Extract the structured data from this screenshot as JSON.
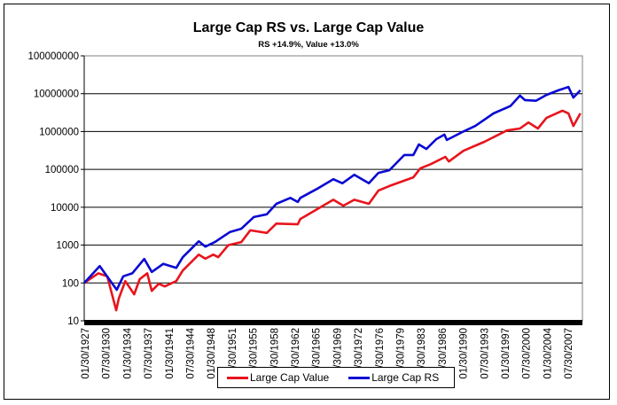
{
  "chart_data": {
    "type": "line",
    "title": "Large Cap RS vs. Large Cap Value",
    "subtitle": "RS +14.9%, Value +13.0%",
    "xlabel": "",
    "ylabel": "",
    "yscale": "log",
    "ylim": [
      10,
      100000000
    ],
    "yticks": [
      "100000000",
      "10000000",
      "1000000",
      "100000",
      "10000",
      "1000",
      "100",
      "10"
    ],
    "xlim": [
      "1927-01",
      "2010-01"
    ],
    "xticks": [
      "01/30/1927",
      "07/30/1930",
      "01/30/1934",
      "07/30/1937",
      "01/30/1941",
      "07/30/1944",
      "01/30/1948",
      "07/30/1951",
      "01/30/1955",
      "07/30/1958",
      "01/30/1962",
      "07/30/1965",
      "01/30/1969",
      "07/30/1972",
      "01/30/1976",
      "07/30/1979",
      "01/30/1983",
      "07/30/1986",
      "01/30/1990",
      "07/30/1993",
      "01/30/1997",
      "07/30/2000",
      "01/30/2004",
      "07/30/2007"
    ],
    "grid": "horizontal",
    "legend": "bottom",
    "series": [
      {
        "name": "Large Cap Value",
        "color": "#e8141c",
        "points": [
          [
            "1927-01",
            100
          ],
          [
            "1929-05",
            180
          ],
          [
            "1930-11",
            150
          ],
          [
            "1932-05",
            19
          ],
          [
            "1932-10",
            38
          ],
          [
            "1933-11",
            112
          ],
          [
            "1935-05",
            50
          ],
          [
            "1936-04",
            126
          ],
          [
            "1937-07",
            180
          ],
          [
            "1938-04",
            62
          ],
          [
            "1939-06",
            95
          ],
          [
            "1940-06",
            81
          ],
          [
            "1942-05",
            112
          ],
          [
            "1943-06",
            214
          ],
          [
            "1946-02",
            560
          ],
          [
            "1947-03",
            437
          ],
          [
            "1948-07",
            560
          ],
          [
            "1949-05",
            480
          ],
          [
            "1951-01",
            1000
          ],
          [
            "1953-03",
            1200
          ],
          [
            "1954-09",
            2450
          ],
          [
            "1957-06",
            2100
          ],
          [
            "1959-01",
            3700
          ],
          [
            "1962-08",
            3550
          ],
          [
            "1963-01",
            4900
          ],
          [
            "1966-01",
            9300
          ],
          [
            "1968-07",
            15800
          ],
          [
            "1970-03",
            11000
          ],
          [
            "1972-01",
            15800
          ],
          [
            "1974-06",
            12300
          ],
          [
            "1976-01",
            27500
          ],
          [
            "1977-11",
            36300
          ],
          [
            "1981-11",
            61700
          ],
          [
            "1983-01",
            107000
          ],
          [
            "1984-10",
            138000
          ],
          [
            "1987-03",
            214000
          ],
          [
            "1987-10",
            162000
          ],
          [
            "1990-03",
            309000
          ],
          [
            "1993-09",
            537000
          ],
          [
            "1997-06",
            1070000
          ],
          [
            "1999-08",
            1200000
          ],
          [
            "2001-01",
            1740000
          ],
          [
            "2002-08",
            1200000
          ],
          [
            "2004-01",
            2290000
          ],
          [
            "2006-09",
            3550000
          ],
          [
            "2007-09",
            3020000
          ],
          [
            "2008-07",
            1410000
          ],
          [
            "2009-09",
            3020000
          ]
        ]
      },
      {
        "name": "Large Cap RS",
        "color": "#0a0ad2",
        "points": [
          [
            "1927-01",
            100
          ],
          [
            "1929-08",
            280
          ],
          [
            "1932-06",
            66
          ],
          [
            "1933-07",
            150
          ],
          [
            "1935-01",
            180
          ],
          [
            "1937-01",
            430
          ],
          [
            "1938-04",
            195
          ],
          [
            "1940-03",
            320
          ],
          [
            "1942-05",
            250
          ],
          [
            "1943-06",
            480
          ],
          [
            "1946-02",
            1260
          ],
          [
            "1947-03",
            910
          ],
          [
            "1948-10",
            1200
          ],
          [
            "1951-04",
            2200
          ],
          [
            "1953-03",
            2700
          ],
          [
            "1955-04",
            5500
          ],
          [
            "1957-06",
            6500
          ],
          [
            "1959-01",
            12300
          ],
          [
            "1961-05",
            17700
          ],
          [
            "1962-08",
            13800
          ],
          [
            "1963-01",
            17700
          ],
          [
            "1966-01",
            32000
          ],
          [
            "1968-07",
            55000
          ],
          [
            "1970-01",
            43000
          ],
          [
            "1972-01",
            72000
          ],
          [
            "1974-06",
            43000
          ],
          [
            "1976-01",
            81000
          ],
          [
            "1977-11",
            95000
          ],
          [
            "1980-05",
            240000
          ],
          [
            "1981-11",
            240000
          ],
          [
            "1982-10",
            457000
          ],
          [
            "1984-01",
            347000
          ],
          [
            "1985-09",
            630000
          ],
          [
            "1987-01",
            830000
          ],
          [
            "1987-06",
            600000
          ],
          [
            "1990-03",
            1000000
          ],
          [
            "1992-03",
            1410000
          ],
          [
            "1995-03",
            3000000
          ],
          [
            "1998-01",
            4700000
          ],
          [
            "1999-08",
            8900000
          ],
          [
            "2000-06",
            6800000
          ],
          [
            "2002-04",
            6500000
          ],
          [
            "2004-01",
            9300000
          ],
          [
            "2006-01",
            12300000
          ],
          [
            "2007-09",
            15100000
          ],
          [
            "2008-07",
            7900000
          ],
          [
            "2009-09",
            12300000
          ]
        ]
      }
    ]
  }
}
